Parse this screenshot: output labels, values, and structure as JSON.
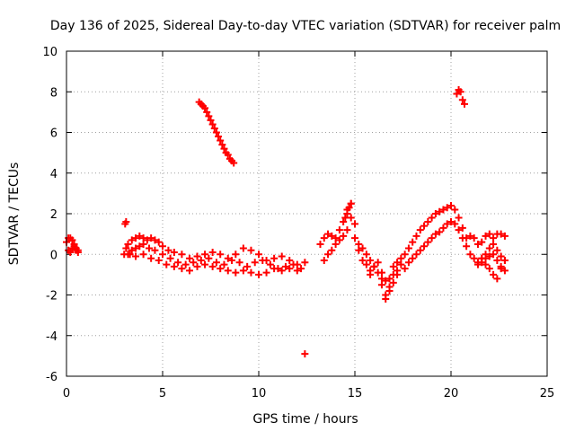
{
  "chart_data": {
    "type": "scatter",
    "title": "Day 136 of 2025, Sidereal Day-to-day VTEC variation (SDTVAR) for receiver palm",
    "xlabel": "GPS time / hours",
    "ylabel": "SDTVAR / TECUs",
    "xlim": [
      0,
      25
    ],
    "ylim": [
      -6,
      10
    ],
    "xticks": [
      0,
      5,
      10,
      15,
      20,
      25
    ],
    "yticks": [
      -6,
      -4,
      -2,
      0,
      2,
      4,
      6,
      8,
      10
    ],
    "grid": true,
    "marker": "+",
    "series": [
      {
        "name": "SDTVAR",
        "color": "#ff0000",
        "x": [
          0.0,
          0.1,
          0.2,
          0.3,
          0.4,
          0.5,
          0.6,
          0.1,
          0.2,
          0.3,
          0.4,
          0.5,
          0.6,
          3.0,
          3.1,
          3.2,
          3.4,
          3.6,
          3.8,
          4.0,
          4.2,
          4.4,
          4.6,
          4.8,
          5.0,
          5.3,
          5.6,
          6.0,
          6.4,
          6.8,
          7.2,
          7.6,
          8.0,
          8.4,
          8.8,
          9.2,
          9.6,
          10.0,
          10.4,
          10.8,
          11.2,
          11.6,
          12.0,
          12.4,
          3.2,
          3.4,
          3.6,
          3.8,
          4.0,
          4.3,
          4.6,
          5.0,
          5.4,
          5.8,
          6.2,
          6.6,
          7.0,
          7.4,
          7.8,
          8.2,
          8.6,
          9.0,
          9.4,
          9.8,
          10.2,
          10.6,
          11.0,
          11.4,
          11.8,
          12.2,
          3.3,
          3.6,
          4.0,
          4.4,
          4.8,
          5.2,
          5.6,
          6.0,
          6.4,
          6.8,
          7.2,
          7.6,
          8.0,
          8.4,
          8.8,
          9.2,
          9.6,
          10.0,
          10.4,
          10.8,
          11.2,
          11.6,
          12.0,
          6.9,
          7.0,
          7.1,
          7.2,
          7.3,
          7.4,
          7.5,
          7.6,
          7.7,
          7.8,
          7.9,
          8.0,
          8.1,
          8.2,
          8.3,
          8.4,
          8.5,
          8.6,
          8.7,
          3.05,
          3.1,
          12.4,
          13.2,
          13.4,
          13.6,
          13.8,
          14.0,
          14.2,
          14.4,
          14.6,
          14.8,
          15.0,
          15.2,
          15.4,
          15.6,
          15.8,
          16.0,
          16.2,
          16.4,
          16.6,
          16.8,
          17.0,
          17.2,
          17.4,
          17.6,
          17.8,
          18.0,
          18.2,
          18.4,
          18.6,
          18.8,
          19.0,
          19.2,
          19.4,
          19.6,
          19.8,
          20.0,
          20.2,
          20.4,
          20.6,
          20.8,
          21.0,
          21.2,
          21.4,
          21.6,
          21.8,
          22.0,
          22.2,
          22.4,
          22.6,
          22.8,
          13.4,
          13.6,
          13.8,
          14.0,
          14.2,
          14.4,
          14.6,
          14.8,
          15.0,
          15.2,
          15.4,
          15.6,
          15.8,
          16.0,
          16.2,
          16.4,
          16.6,
          16.8,
          17.0,
          17.2,
          17.4,
          17.6,
          17.8,
          18.0,
          18.2,
          18.4,
          18.6,
          18.8,
          19.0,
          19.2,
          19.4,
          19.6,
          19.8,
          20.0,
          20.2,
          20.4,
          20.6,
          20.8,
          21.0,
          21.2,
          21.4,
          21.6,
          21.8,
          22.0,
          22.2,
          22.4,
          22.6,
          22.8,
          14.5,
          14.6,
          14.7,
          14.8,
          15.8,
          16.0,
          16.4,
          16.6,
          16.8,
          17.0,
          17.2,
          20.3,
          20.4,
          20.5,
          20.6,
          20.7,
          21.6,
          21.8,
          22.0,
          22.2,
          22.4,
          22.6,
          22.8,
          21.4,
          21.6,
          21.8,
          22.0,
          22.2,
          22.4,
          22.6,
          22.8
        ],
        "y": [
          0.6,
          0.8,
          0.8,
          0.7,
          0.5,
          0.3,
          0.2,
          0.2,
          0.1,
          0.3,
          0.4,
          0.2,
          0.1,
          0.0,
          0.3,
          0.5,
          0.7,
          0.8,
          0.9,
          0.8,
          0.7,
          0.8,
          0.7,
          0.6,
          0.4,
          0.2,
          0.1,
          0.0,
          -0.2,
          -0.1,
          0.0,
          0.1,
          0.0,
          -0.2,
          0.0,
          0.3,
          0.2,
          0.0,
          -0.3,
          -0.2,
          -0.1,
          -0.3,
          -0.5,
          -0.4,
          0.0,
          0.2,
          0.3,
          0.4,
          0.5,
          0.3,
          0.2,
          0.0,
          -0.2,
          -0.4,
          -0.5,
          -0.4,
          -0.3,
          -0.2,
          -0.4,
          -0.5,
          -0.3,
          -0.4,
          -0.6,
          -0.4,
          -0.3,
          -0.5,
          -0.7,
          -0.6,
          -0.5,
          -0.7,
          0.0,
          -0.1,
          0.0,
          -0.2,
          -0.3,
          -0.5,
          -0.6,
          -0.7,
          -0.8,
          -0.6,
          -0.5,
          -0.6,
          -0.7,
          -0.8,
          -0.9,
          -0.8,
          -0.9,
          -1.0,
          -0.9,
          -0.7,
          -0.8,
          -0.7,
          -0.8,
          7.5,
          7.4,
          7.3,
          7.2,
          7.0,
          6.8,
          6.6,
          6.4,
          6.2,
          6.0,
          5.8,
          5.6,
          5.4,
          5.2,
          5.0,
          4.9,
          4.7,
          4.6,
          4.5,
          1.5,
          1.6,
          -4.9,
          0.5,
          0.8,
          1.0,
          0.9,
          0.8,
          1.2,
          1.6,
          2.2,
          2.5,
          1.5,
          0.5,
          0.3,
          0.0,
          -0.3,
          -0.6,
          -0.9,
          -1.5,
          -2.0,
          -1.2,
          -0.6,
          -0.4,
          -0.2,
          0.0,
          0.3,
          0.6,
          0.9,
          1.2,
          1.4,
          1.6,
          1.8,
          2.0,
          2.1,
          2.2,
          2.3,
          2.4,
          2.2,
          1.8,
          1.3,
          0.8,
          0.9,
          0.8,
          0.5,
          0.6,
          0.9,
          1.0,
          0.8,
          1.0,
          1.0,
          0.9,
          -0.3,
          0.0,
          0.2,
          0.5,
          0.7,
          0.9,
          1.2,
          1.8,
          0.8,
          0.2,
          -0.3,
          -0.5,
          -0.8,
          -0.6,
          -0.4,
          -0.9,
          -1.3,
          -1.6,
          -1.0,
          -0.8,
          -0.5,
          -0.7,
          -0.4,
          -0.2,
          0.0,
          0.2,
          0.4,
          0.6,
          0.8,
          1.0,
          1.1,
          1.3,
          1.5,
          1.6,
          1.5,
          1.2,
          0.8,
          0.4,
          0.0,
          -0.2,
          -0.4,
          -0.2,
          0.0,
          0.3,
          0.5,
          0.2,
          -0.1,
          -0.3,
          1.8,
          2.0,
          2.3,
          2.5,
          -1.0,
          -0.6,
          -1.2,
          -2.2,
          -1.8,
          -1.4,
          -1.0,
          7.9,
          8.1,
          8.0,
          7.6,
          7.4,
          -0.2,
          -0.5,
          -0.7,
          -1.0,
          -1.2,
          -0.7,
          -0.3,
          -0.5,
          -0.4,
          -0.2,
          -0.1,
          0.0,
          -0.3,
          -0.6,
          -0.8
        ]
      }
    ]
  }
}
